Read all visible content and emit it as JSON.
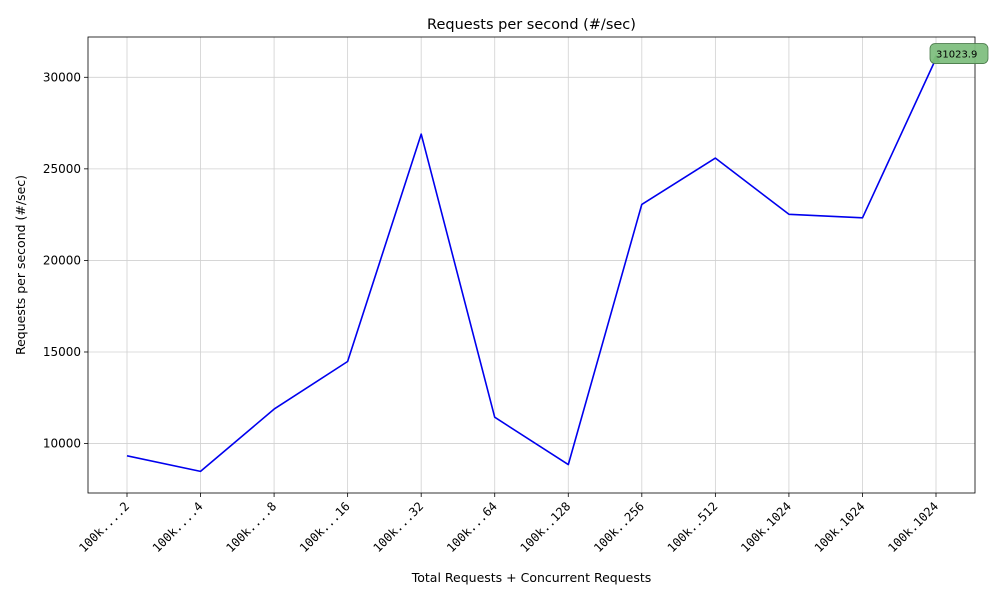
{
  "chart_data": {
    "type": "line",
    "title": "Requests per second (#/sec)",
    "xlabel": "Total Requests + Concurrent Requests",
    "ylabel": "Requests per second (#/sec)",
    "categories": [
      "100k....2",
      "100k....4",
      "100k....8",
      "100k...16",
      "100k...32",
      "100k...64",
      "100k..128",
      "100k..256",
      "100k..512",
      "100k.1024",
      "100k.1024",
      "100k.1024"
    ],
    "series": [
      {
        "values": [
          9330,
          8480,
          11880,
          14480,
          26900,
          11440,
          8850,
          23060,
          25590,
          22520,
          22330,
          31023.9
        ],
        "color": "#0000ee"
      }
    ],
    "ylim": [
      7300,
      32200
    ],
    "yticks": [
      10000,
      15000,
      20000,
      25000,
      30000
    ],
    "grid": true,
    "annotation": {
      "text": "31023.9",
      "category_index": 11,
      "value": 31023.9,
      "marker_color": "#008000",
      "box_color": "#7fbf7f"
    }
  }
}
